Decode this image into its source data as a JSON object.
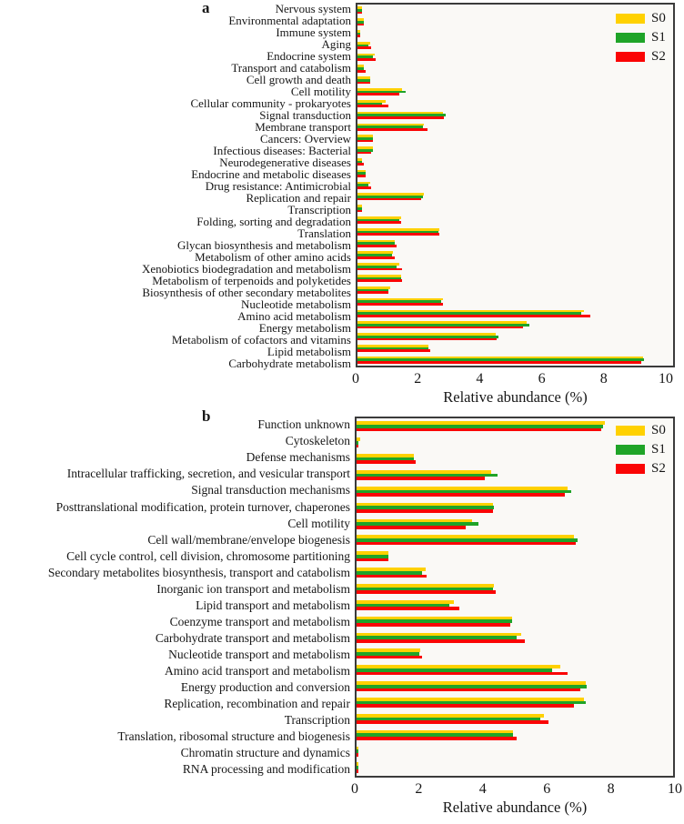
{
  "chart_data": [
    {
      "panel": "a",
      "type": "bar",
      "orientation": "horizontal",
      "xlabel": "Relative abundance (%)",
      "xlim": [
        0,
        10
      ],
      "x_ticks": [
        0,
        2,
        4,
        6,
        8,
        10
      ],
      "grid": false,
      "legend_position": "upper right",
      "legend": [
        {
          "label": "S0",
          "color": "#FFD100"
        },
        {
          "label": "S1",
          "color": "#1FA428"
        },
        {
          "label": "S2",
          "color": "#FA0505"
        }
      ],
      "categories": [
        "Nervous system",
        "Environmental adaptation",
        "Immune system",
        "Aging",
        "Endocrine system",
        "Transport and catabolism",
        "Cell growth and death",
        "Cell motility",
        "Cellular community - prokaryotes",
        "Signal transduction",
        "Membrane transport",
        "Cancers: Overview",
        "Infectious diseases: Bacterial",
        "Neurodegenerative diseases",
        "Endocrine and metabolic diseases",
        "Drug resistance: Antimicrobial",
        "Replication and repair",
        "Transcription",
        "Folding, sorting and degradation",
        "Translation",
        "Glycan biosynthesis and metabolism",
        "Metabolism of other amino acids",
        "Xenobiotics biodegradation and metabolism",
        "Metabolism of terpenoids and polyketides",
        "Biosynthesis of other secondary metabolites",
        "Nucleotide metabolism",
        "Amino acid metabolism",
        "Energy metabolism",
        "Metabolism of cofactors and vitamins",
        "Lipid metabolism",
        "Carbohydrate metabolism"
      ],
      "series": [
        {
          "name": "S0",
          "values": [
            0.15,
            0.2,
            0.1,
            0.4,
            0.55,
            0.2,
            0.4,
            1.45,
            0.9,
            2.75,
            2.15,
            0.5,
            0.5,
            0.15,
            0.25,
            0.4,
            2.15,
            0.15,
            1.4,
            2.65,
            1.2,
            1.15,
            1.35,
            1.4,
            1.05,
            2.75,
            7.3,
            5.45,
            4.45,
            2.3,
            9.2
          ]
        },
        {
          "name": "S1",
          "values": [
            0.15,
            0.2,
            0.1,
            0.35,
            0.5,
            0.2,
            0.4,
            1.55,
            0.8,
            2.85,
            2.1,
            0.5,
            0.5,
            0.15,
            0.25,
            0.35,
            2.1,
            0.15,
            1.35,
            2.6,
            1.2,
            1.1,
            1.25,
            1.4,
            1.0,
            2.7,
            7.2,
            5.55,
            4.55,
            2.3,
            9.25
          ]
        },
        {
          "name": "S2",
          "values": [
            0.15,
            0.2,
            0.1,
            0.45,
            0.6,
            0.25,
            0.4,
            1.35,
            1.0,
            2.8,
            2.25,
            0.5,
            0.45,
            0.2,
            0.25,
            0.45,
            2.05,
            0.15,
            1.4,
            2.65,
            1.25,
            1.2,
            1.45,
            1.45,
            1.0,
            2.75,
            7.5,
            5.35,
            4.5,
            2.35,
            9.15
          ]
        }
      ]
    },
    {
      "panel": "b",
      "type": "bar",
      "orientation": "horizontal",
      "xlabel": "Relative abundance (%)",
      "xlim": [
        0,
        10
      ],
      "x_ticks": [
        0,
        2,
        4,
        6,
        8,
        10
      ],
      "grid": false,
      "legend_position": "upper right",
      "legend": [
        {
          "label": "S0",
          "color": "#FFD100"
        },
        {
          "label": "S1",
          "color": "#1FA428"
        },
        {
          "label": "S2",
          "color": "#FA0505"
        }
      ],
      "categories": [
        "Function unknown",
        "Cytoskeleton",
        "Defense mechanisms",
        "Intracellular trafficking, secretion, and vesicular transport",
        "Signal transduction mechanisms",
        "Posttranslational modification, protein turnover, chaperones",
        "Cell motility",
        "Cell wall/membrane/envelope biogenesis",
        "Cell cycle control, cell division, chromosome partitioning",
        "Secondary metabolites biosynthesis, transport and catabolism",
        "Inorganic ion transport and metabolism",
        "Lipid transport and metabolism",
        "Coenzyme transport and metabolism",
        "Carbohydrate transport and metabolism",
        "Nucleotide transport and metabolism",
        "Amino acid transport and metabolism",
        "Energy production and conversion",
        "Replication, recombination and repair",
        "Transcription",
        "Translation, ribosomal structure and biogenesis",
        "Chromatin structure and dynamics",
        "RNA processing and modification"
      ],
      "series": [
        {
          "name": "S0",
          "values": [
            7.75,
            0.1,
            1.8,
            4.2,
            6.6,
            4.25,
            3.6,
            6.8,
            1.0,
            2.15,
            4.3,
            3.05,
            4.85,
            5.15,
            2.0,
            6.35,
            7.15,
            7.1,
            5.85,
            4.9,
            0.05,
            0.05
          ]
        },
        {
          "name": "S1",
          "values": [
            7.7,
            0.05,
            1.8,
            4.4,
            6.7,
            4.3,
            3.8,
            6.9,
            1.0,
            2.05,
            4.25,
            2.9,
            4.85,
            5.0,
            1.95,
            6.1,
            7.2,
            7.15,
            5.75,
            4.9,
            0.05,
            0.05
          ]
        },
        {
          "name": "S2",
          "values": [
            7.65,
            0.05,
            1.85,
            4.0,
            6.5,
            4.25,
            3.4,
            6.85,
            1.0,
            2.2,
            4.35,
            3.2,
            4.8,
            5.25,
            2.05,
            6.6,
            7.0,
            6.8,
            6.0,
            5.0,
            0.05,
            0.05
          ]
        }
      ]
    }
  ]
}
